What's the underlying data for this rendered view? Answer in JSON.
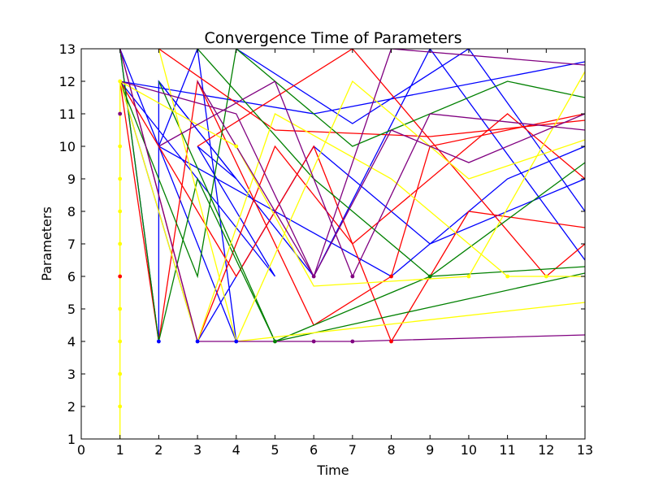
{
  "chart_data": {
    "type": "line",
    "title": "Convergence Time of Parameters",
    "xlabel": "Time",
    "ylabel": "Parameters",
    "xlim": [
      0,
      13
    ],
    "ylim": [
      1,
      13
    ],
    "grid": false,
    "xticks": [
      "0",
      "1",
      "2",
      "3",
      "4",
      "5",
      "6",
      "7",
      "8",
      "9",
      "10",
      "11",
      "12",
      "13"
    ],
    "yticks": [
      "1",
      "2",
      "3",
      "4",
      "5",
      "6",
      "7",
      "8",
      "9",
      "10",
      "11",
      "12",
      "13"
    ],
    "series": [
      {
        "name": "blue",
        "color": "#0000ff",
        "values": [
          [
            1,
            13
          ],
          [
            2,
            4
          ],
          [
            2,
            12
          ],
          [
            4,
            9
          ],
          [
            3,
            10
          ],
          [
            5,
            6
          ],
          [
            1,
            12
          ],
          [
            6,
            11
          ],
          [
            13,
            12.6
          ]
        ]
      },
      {
        "name": "blue-2",
        "color": "#0000ff",
        "values": [
          [
            1,
            12
          ],
          [
            3,
            4
          ],
          [
            6,
            10
          ],
          [
            9,
            7
          ],
          [
            13,
            9
          ]
        ]
      },
      {
        "name": "blue-3",
        "color": "#0000ff",
        "values": [
          [
            1,
            13
          ],
          [
            4,
            4
          ],
          [
            3,
            13
          ],
          [
            2,
            10
          ],
          [
            8,
            6
          ],
          [
            11,
            9
          ],
          [
            13,
            10
          ]
        ]
      },
      {
        "name": "blue-4",
        "color": "#0000ff",
        "values": [
          [
            2,
            12
          ],
          [
            6,
            6
          ],
          [
            9,
            13
          ],
          [
            13,
            6.5
          ]
        ]
      },
      {
        "name": "blue-5",
        "color": "#0000ff",
        "values": [
          [
            4,
            13
          ],
          [
            7,
            10.7
          ],
          [
            10,
            13
          ],
          [
            13,
            8
          ]
        ]
      },
      {
        "name": "red",
        "color": "#ff0000",
        "values": [
          [
            1,
            12
          ],
          [
            2,
            4
          ],
          [
            3,
            12
          ],
          [
            6,
            4.5
          ],
          [
            8,
            6
          ],
          [
            9,
            10
          ],
          [
            13,
            11
          ]
        ]
      },
      {
        "name": "red-2",
        "color": "#ff0000",
        "values": [
          [
            1,
            13
          ],
          [
            3,
            4
          ],
          [
            5,
            10
          ],
          [
            7,
            7
          ],
          [
            11,
            11
          ],
          [
            13,
            9
          ]
        ]
      },
      {
        "name": "red-3",
        "color": "#ff0000",
        "values": [
          [
            1,
            12
          ],
          [
            4,
            6
          ],
          [
            6,
            10
          ],
          [
            8,
            4
          ],
          [
            10,
            8
          ],
          [
            13,
            7.5
          ]
        ]
      },
      {
        "name": "red-4",
        "color": "#ff0000",
        "values": [
          [
            2,
            13
          ],
          [
            5,
            10.5
          ],
          [
            9,
            10.3
          ],
          [
            13,
            10.8
          ]
        ]
      },
      {
        "name": "red-5",
        "color": "#ff0000",
        "values": [
          [
            3,
            10
          ],
          [
            7,
            13
          ],
          [
            12,
            6
          ],
          [
            13,
            7
          ]
        ]
      },
      {
        "name": "green",
        "color": "#008000",
        "values": [
          [
            1,
            13
          ],
          [
            2,
            4
          ],
          [
            3,
            9
          ],
          [
            5,
            4
          ],
          [
            9,
            6
          ],
          [
            13,
            6.3
          ]
        ]
      },
      {
        "name": "green-2",
        "color": "#008000",
        "values": [
          [
            1,
            12
          ],
          [
            3,
            6
          ],
          [
            4,
            13
          ],
          [
            7,
            10
          ],
          [
            11,
            12
          ],
          [
            13,
            11.5
          ]
        ]
      },
      {
        "name": "green-3",
        "color": "#008000",
        "values": [
          [
            2,
            12
          ],
          [
            5,
            4
          ],
          [
            13,
            6.1
          ]
        ]
      },
      {
        "name": "green-4",
        "color": "#008000",
        "values": [
          [
            3,
            13
          ],
          [
            6,
            9
          ],
          [
            9,
            6
          ],
          [
            13,
            9.5
          ]
        ]
      },
      {
        "name": "yellow",
        "color": "#ffff00",
        "values": [
          [
            1,
            1
          ],
          [
            1,
            12
          ],
          [
            4,
            10
          ],
          [
            6,
            5.7
          ],
          [
            10,
            6
          ],
          [
            13,
            12.3
          ]
        ]
      },
      {
        "name": "yellow-2",
        "color": "#ffff00",
        "values": [
          [
            1,
            12
          ],
          [
            3,
            4
          ],
          [
            5,
            11
          ],
          [
            8,
            9
          ],
          [
            11,
            6
          ],
          [
            12,
            6
          ],
          [
            13,
            6
          ]
        ]
      },
      {
        "name": "yellow-3",
        "color": "#ffff00",
        "values": [
          [
            4,
            4
          ],
          [
            13,
            5.2
          ]
        ]
      },
      {
        "name": "yellow-4",
        "color": "#ffff00",
        "values": [
          [
            2,
            13
          ],
          [
            4,
            4
          ],
          [
            7,
            12
          ],
          [
            10,
            9
          ],
          [
            13,
            10.2
          ]
        ]
      },
      {
        "name": "purple",
        "color": "#800080",
        "values": [
          [
            1,
            13
          ],
          [
            3,
            4
          ],
          [
            6,
            4
          ],
          [
            7,
            4
          ],
          [
            13,
            4.2
          ]
        ]
      },
      {
        "name": "purple-2",
        "color": "#800080",
        "values": [
          [
            1,
            12
          ],
          [
            4,
            11
          ],
          [
            6,
            6
          ],
          [
            8,
            10.5
          ],
          [
            10,
            9.5
          ],
          [
            13,
            11
          ]
        ]
      },
      {
        "name": "purple-3",
        "color": "#800080",
        "values": [
          [
            2,
            10
          ],
          [
            5,
            12
          ],
          [
            7,
            6
          ],
          [
            9,
            11
          ],
          [
            13,
            10.5
          ]
        ]
      },
      {
        "name": "purple-4",
        "color": "#800080",
        "values": [
          [
            3,
            12
          ],
          [
            6,
            6
          ],
          [
            8,
            13
          ],
          [
            13,
            12.5
          ]
        ]
      }
    ],
    "markers": [
      {
        "x": 2,
        "y": 4,
        "color": "#0000ff"
      },
      {
        "x": 3,
        "y": 4,
        "color": "#0000ff"
      },
      {
        "x": 4,
        "y": 4,
        "color": "#0000ff"
      },
      {
        "x": 5,
        "y": 4,
        "color": "#008000"
      },
      {
        "x": 6,
        "y": 4,
        "color": "#800080"
      },
      {
        "x": 7,
        "y": 4,
        "color": "#800080"
      },
      {
        "x": 8,
        "y": 4,
        "color": "#ff0000"
      },
      {
        "x": 6,
        "y": 6,
        "color": "#800080"
      },
      {
        "x": 7,
        "y": 6,
        "color": "#800080"
      },
      {
        "x": 8,
        "y": 6,
        "color": "#ff0000"
      },
      {
        "x": 9,
        "y": 6,
        "color": "#008000"
      },
      {
        "x": 10,
        "y": 6,
        "color": "#ffff00"
      },
      {
        "x": 11,
        "y": 6,
        "color": "#ffff00"
      },
      {
        "x": 12,
        "y": 6,
        "color": "#ffff00"
      },
      {
        "x": 1,
        "y": 6,
        "color": "#ff0000"
      },
      {
        "x": 1,
        "y": 5,
        "color": "#ffff00"
      },
      {
        "x": 1,
        "y": 4,
        "color": "#ffff00"
      },
      {
        "x": 1,
        "y": 3,
        "color": "#ffff00"
      },
      {
        "x": 1,
        "y": 2,
        "color": "#ffff00"
      },
      {
        "x": 1,
        "y": 7,
        "color": "#ffff00"
      },
      {
        "x": 1,
        "y": 8,
        "color": "#ffff00"
      },
      {
        "x": 1,
        "y": 9,
        "color": "#ffff00"
      },
      {
        "x": 1,
        "y": 10,
        "color": "#ffff00"
      },
      {
        "x": 1,
        "y": 11,
        "color": "#800080"
      },
      {
        "x": 1,
        "y": 12,
        "color": "#ffff00"
      },
      {
        "x": 4,
        "y": 10,
        "color": "#ffff00"
      }
    ]
  }
}
